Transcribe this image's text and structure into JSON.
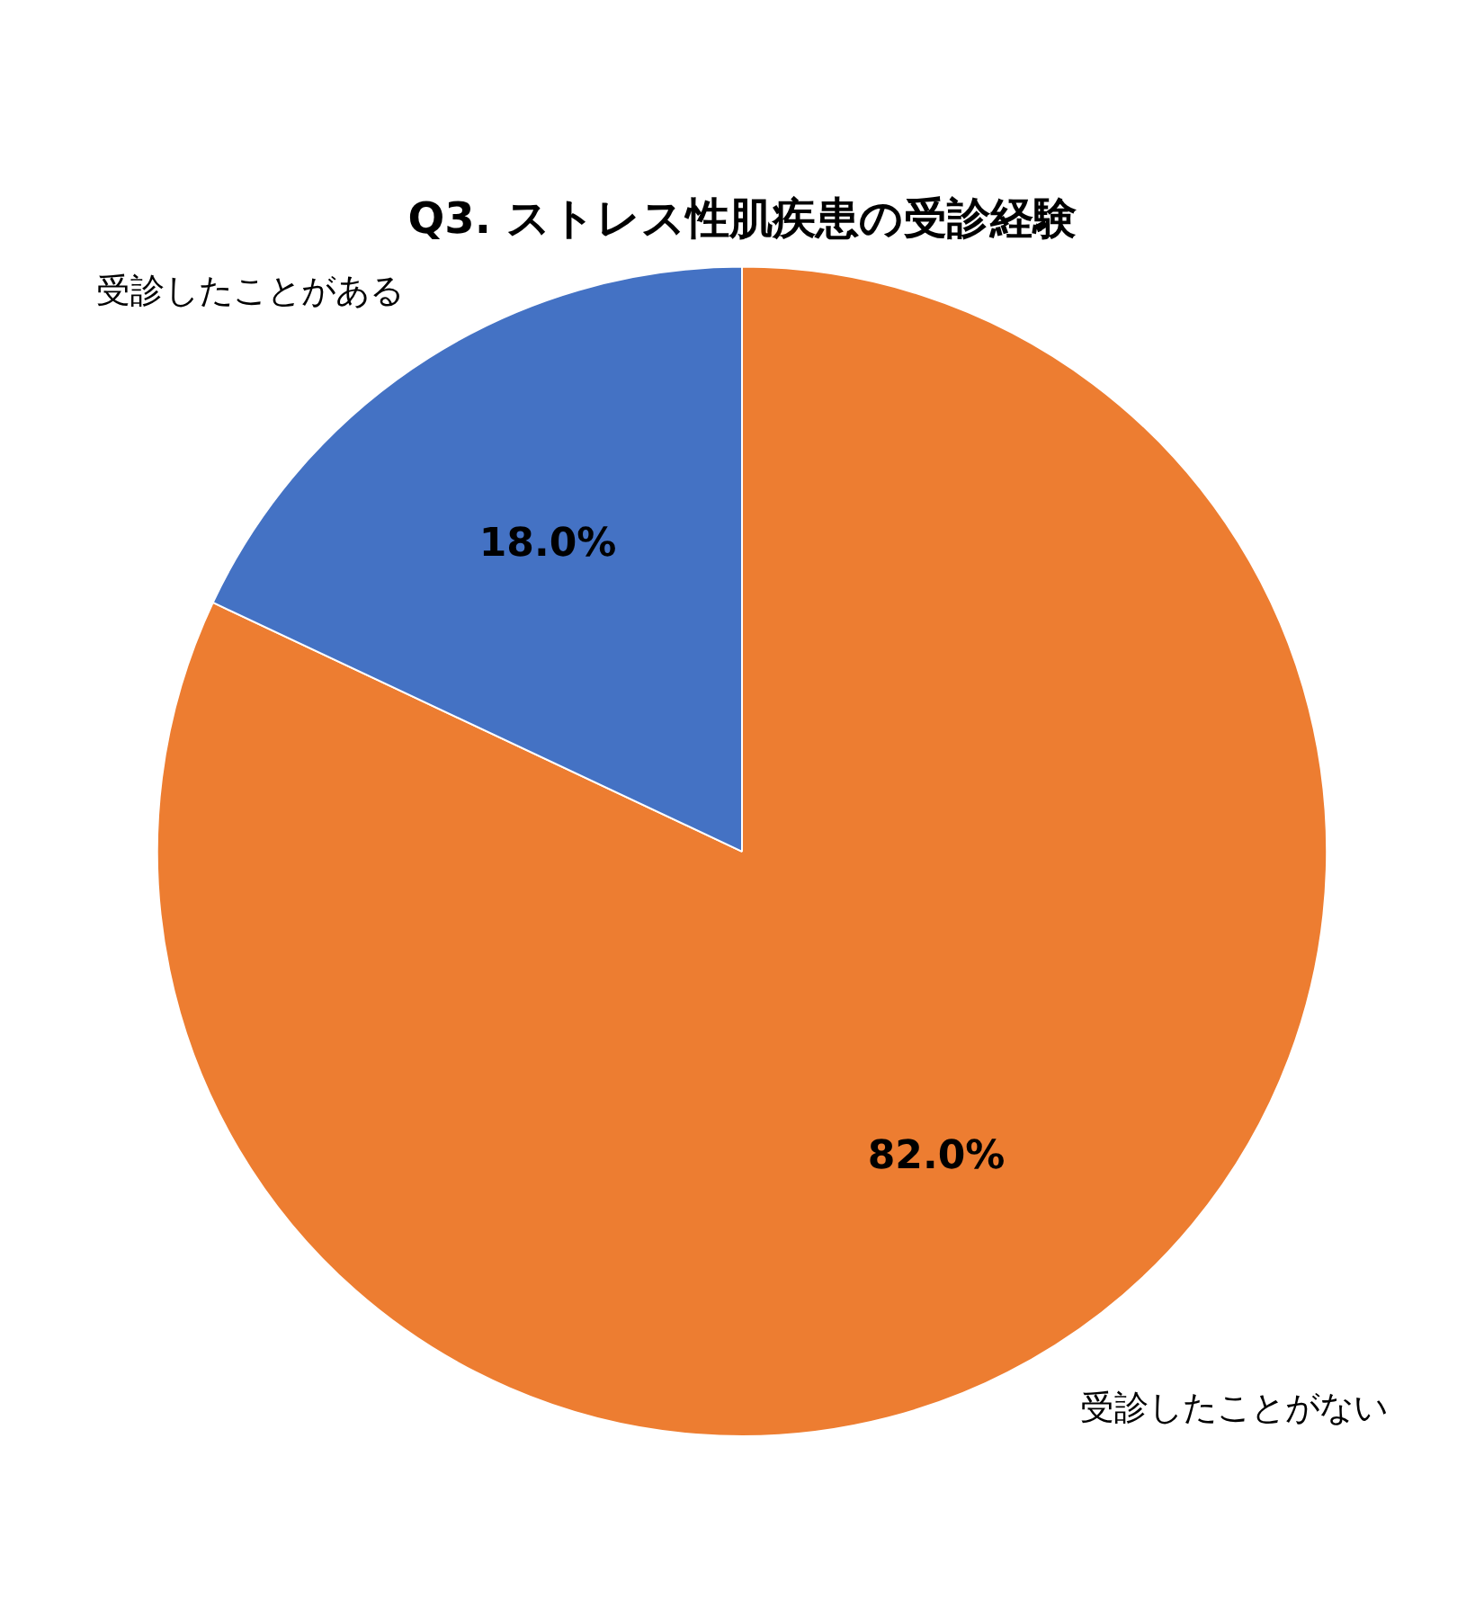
{
  "chart_data": {
    "type": "pie",
    "title": "Q3. ストレス性肌疾患の受診経験",
    "categories": [
      "受診したことがない",
      "受診したことがある"
    ],
    "values": [
      82.0,
      18.0
    ],
    "colors": [
      "#ed7d31",
      "#4472c4"
    ],
    "value_labels": [
      "82.0%",
      "18.0%"
    ],
    "legend": false
  }
}
